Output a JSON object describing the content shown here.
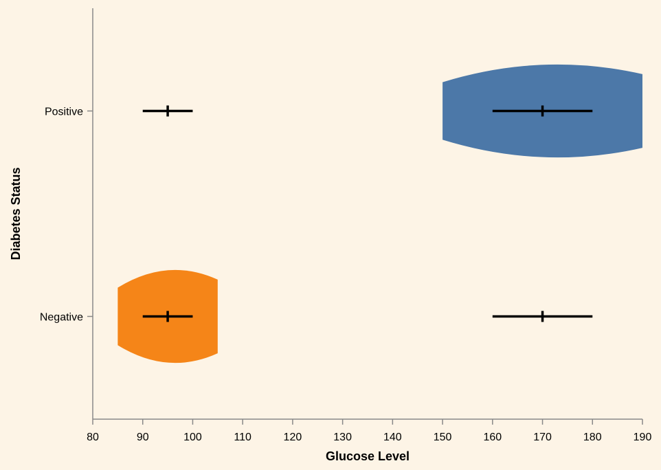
{
  "chart_data": {
    "type": "violin",
    "xlabel": "Glucose Level",
    "ylabel": "Diabetes Status",
    "xlim": [
      80,
      190
    ],
    "x_ticks": [
      80,
      90,
      100,
      110,
      120,
      130,
      140,
      150,
      160,
      170,
      180,
      190
    ],
    "categories": [
      "Positive",
      "Negative"
    ],
    "grid": false,
    "legend": "none",
    "violins": [
      {
        "category": "Positive",
        "min": 150,
        "max": 190,
        "center": 170,
        "color": "#4c78a8"
      },
      {
        "category": "Negative",
        "min": 85,
        "max": 105,
        "center": 95,
        "color": "#f58518"
      }
    ],
    "intervals": [
      {
        "category": "Positive",
        "low": 90,
        "mid": 95,
        "high": 100
      },
      {
        "category": "Positive",
        "low": 160,
        "mid": 170,
        "high": 180
      },
      {
        "category": "Negative",
        "low": 90,
        "mid": 95,
        "high": 100
      },
      {
        "category": "Negative",
        "low": 160,
        "mid": 170,
        "high": 180
      }
    ]
  }
}
